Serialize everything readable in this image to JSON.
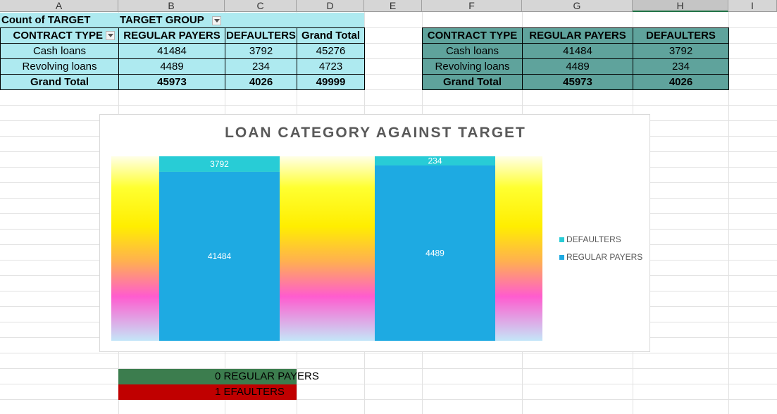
{
  "columns": [
    "A",
    "B",
    "C",
    "D",
    "E",
    "F",
    "G",
    "H",
    "I"
  ],
  "pivot": {
    "count_label": "Count of TARGET",
    "group_label": "TARGET GROUP",
    "headers": [
      "CONTRACT TYPE",
      "REGULAR PAYERS",
      "DEFAULTERS",
      "Grand Total"
    ],
    "rows": [
      [
        "Cash loans",
        "41484",
        "3792",
        "45276"
      ],
      [
        "Revolving loans",
        "4489",
        "234",
        "4723"
      ]
    ],
    "total": [
      "Grand Total",
      "45973",
      "4026",
      "49999"
    ]
  },
  "summary": {
    "headers": [
      "CONTRACT TYPE",
      "REGULAR PAYERS",
      "DEFAULTERS"
    ],
    "rows": [
      [
        "Cash loans",
        "41484",
        "3792"
      ],
      [
        "Revolving loans",
        "4489",
        "234"
      ]
    ],
    "total": [
      "Grand Total",
      "45973",
      "4026"
    ]
  },
  "chart_data": {
    "type": "bar",
    "stacked": "percent",
    "title": "LOAN CATEGORY AGAINST TARGET",
    "categories": [
      "Cash loans",
      "Revolving loans"
    ],
    "series": [
      {
        "name": "REGULAR PAYERS",
        "values": [
          41484,
          4489
        ],
        "color": "#1eaae2"
      },
      {
        "name": "DEFAULTERS",
        "values": [
          3792,
          234
        ],
        "color": "#28ccd6"
      }
    ],
    "legend_position": "right",
    "legend_order": [
      "DEFAULTERS",
      "REGULAR PAYERS"
    ]
  },
  "legend": {
    "item1": "DEFAULTERS",
    "item2": "REGULAR PAYERS"
  },
  "notes": [
    {
      "text": "0 REGULAR PAYERS",
      "color": "#3c7d4e"
    },
    {
      "text": "1 EFAULTERS",
      "color": "#c00000"
    }
  ],
  "colors": {
    "pivot_fill": "#aeeaf0",
    "summary_fill": "#5fa39c",
    "selected_column_accent": "#217346"
  }
}
